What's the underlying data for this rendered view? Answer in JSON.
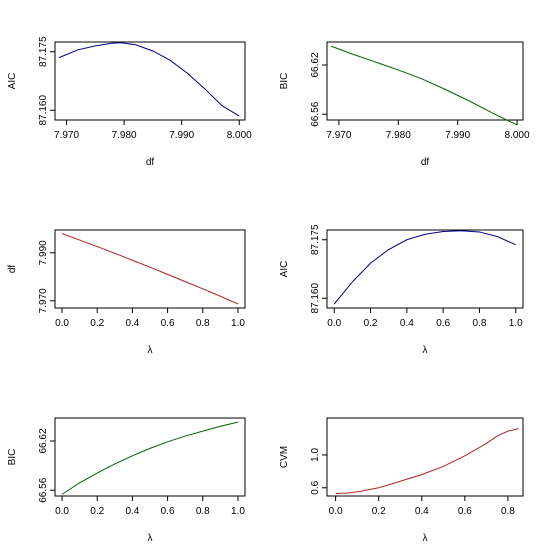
{
  "colors": {
    "blue": "#00008b",
    "green": "#006400",
    "red": "#b22222",
    "axis": "#000000"
  },
  "chart_data": [
    {
      "type": "line",
      "xlabel": "df",
      "ylabel": "AIC",
      "xlim": [
        7.968,
        8.001
      ],
      "ylim": [
        87.1575,
        87.1775
      ],
      "xticks": [
        "7.970",
        "7.980",
        "7.990",
        "8.000"
      ],
      "yticks": [
        "87.160",
        "87.175"
      ],
      "color": "blue",
      "x": [
        7.9687,
        7.972,
        7.975,
        7.978,
        7.9795,
        7.982,
        7.985,
        7.988,
        7.991,
        7.994,
        7.997,
        8.0
      ],
      "y": [
        87.1735,
        87.1755,
        87.1765,
        87.1772,
        87.1773,
        87.1768,
        87.1752,
        87.1728,
        87.1695,
        87.1655,
        87.1612,
        87.1585
      ]
    },
    {
      "type": "line",
      "xlabel": "df",
      "ylabel": "BIC",
      "xlim": [
        7.968,
        8.001
      ],
      "ylim": [
        66.553,
        66.648
      ],
      "xticks": [
        "7.970",
        "7.980",
        "7.990",
        "8.000"
      ],
      "yticks": [
        "66.56",
        "66.62"
      ],
      "color": "green",
      "x": [
        7.9687,
        7.972,
        7.976,
        7.98,
        7.984,
        7.988,
        7.992,
        7.996,
        8.0
      ],
      "y": [
        66.643,
        66.634,
        66.624,
        66.614,
        66.603,
        66.59,
        66.576,
        66.561,
        66.547
      ]
    },
    {
      "type": "line",
      "xlabel": "λ",
      "ylabel": "df",
      "xlim": [
        -0.04,
        1.04
      ],
      "ylim": [
        7.967,
        7.9995
      ],
      "xticks": [
        "0.0",
        "0.2",
        "0.4",
        "0.6",
        "0.8",
        "1.0"
      ],
      "yticks": [
        "7.970",
        "7.990"
      ],
      "color": "red",
      "x": [
        0,
        0.1,
        0.2,
        0.3,
        0.4,
        0.5,
        0.6,
        0.7,
        0.8,
        0.9,
        1.0
      ],
      "y": [
        7.998,
        7.9953,
        7.9926,
        7.9898,
        7.9869,
        7.984,
        7.981,
        7.978,
        7.975,
        7.9719,
        7.9687
      ]
    },
    {
      "type": "line",
      "xlabel": "λ",
      "ylabel": "AIC",
      "xlim": [
        -0.04,
        1.04
      ],
      "ylim": [
        87.1575,
        87.1775
      ],
      "xticks": [
        "0.0",
        "0.2",
        "0.4",
        "0.6",
        "0.8",
        "1.0"
      ],
      "yticks": [
        "87.160",
        "87.175"
      ],
      "color": "blue",
      "x": [
        0,
        0.1,
        0.2,
        0.3,
        0.4,
        0.5,
        0.6,
        0.7,
        0.8,
        0.9,
        1.0
      ],
      "y": [
        87.1585,
        87.1642,
        87.169,
        87.1725,
        87.175,
        87.1764,
        87.1771,
        87.1773,
        87.177,
        87.1758,
        87.1737
      ]
    },
    {
      "type": "line",
      "xlabel": "λ",
      "ylabel": "BIC",
      "xlim": [
        -0.04,
        1.04
      ],
      "ylim": [
        66.553,
        66.648
      ],
      "xticks": [
        "0.0",
        "0.2",
        "0.4",
        "0.6",
        "0.8",
        "1.0"
      ],
      "yticks": [
        "66.56",
        "66.62"
      ],
      "color": "green",
      "x": [
        0,
        0.1,
        0.2,
        0.3,
        0.4,
        0.5,
        0.6,
        0.7,
        0.8,
        0.9,
        1.0
      ],
      "y": [
        66.555,
        66.569,
        66.581,
        66.592,
        66.602,
        66.611,
        66.619,
        66.626,
        66.632,
        66.638,
        66.643
      ]
    },
    {
      "type": "line",
      "xlabel": "λ",
      "ylabel": "CVM",
      "xlim": [
        -0.04,
        0.87
      ],
      "ylim": [
        0.5,
        1.45
      ],
      "xticks": [
        "0.0",
        "0.2",
        "0.4",
        "0.6",
        "0.8"
      ],
      "yticks": [
        "0.6",
        "1.0"
      ],
      "color": "red",
      "x": [
        0,
        0.05,
        0.1,
        0.2,
        0.3,
        0.4,
        0.5,
        0.6,
        0.7,
        0.75,
        0.8,
        0.85
      ],
      "y": [
        0.53,
        0.535,
        0.55,
        0.6,
        0.68,
        0.76,
        0.86,
        0.99,
        1.14,
        1.23,
        1.29,
        1.32
      ]
    }
  ]
}
